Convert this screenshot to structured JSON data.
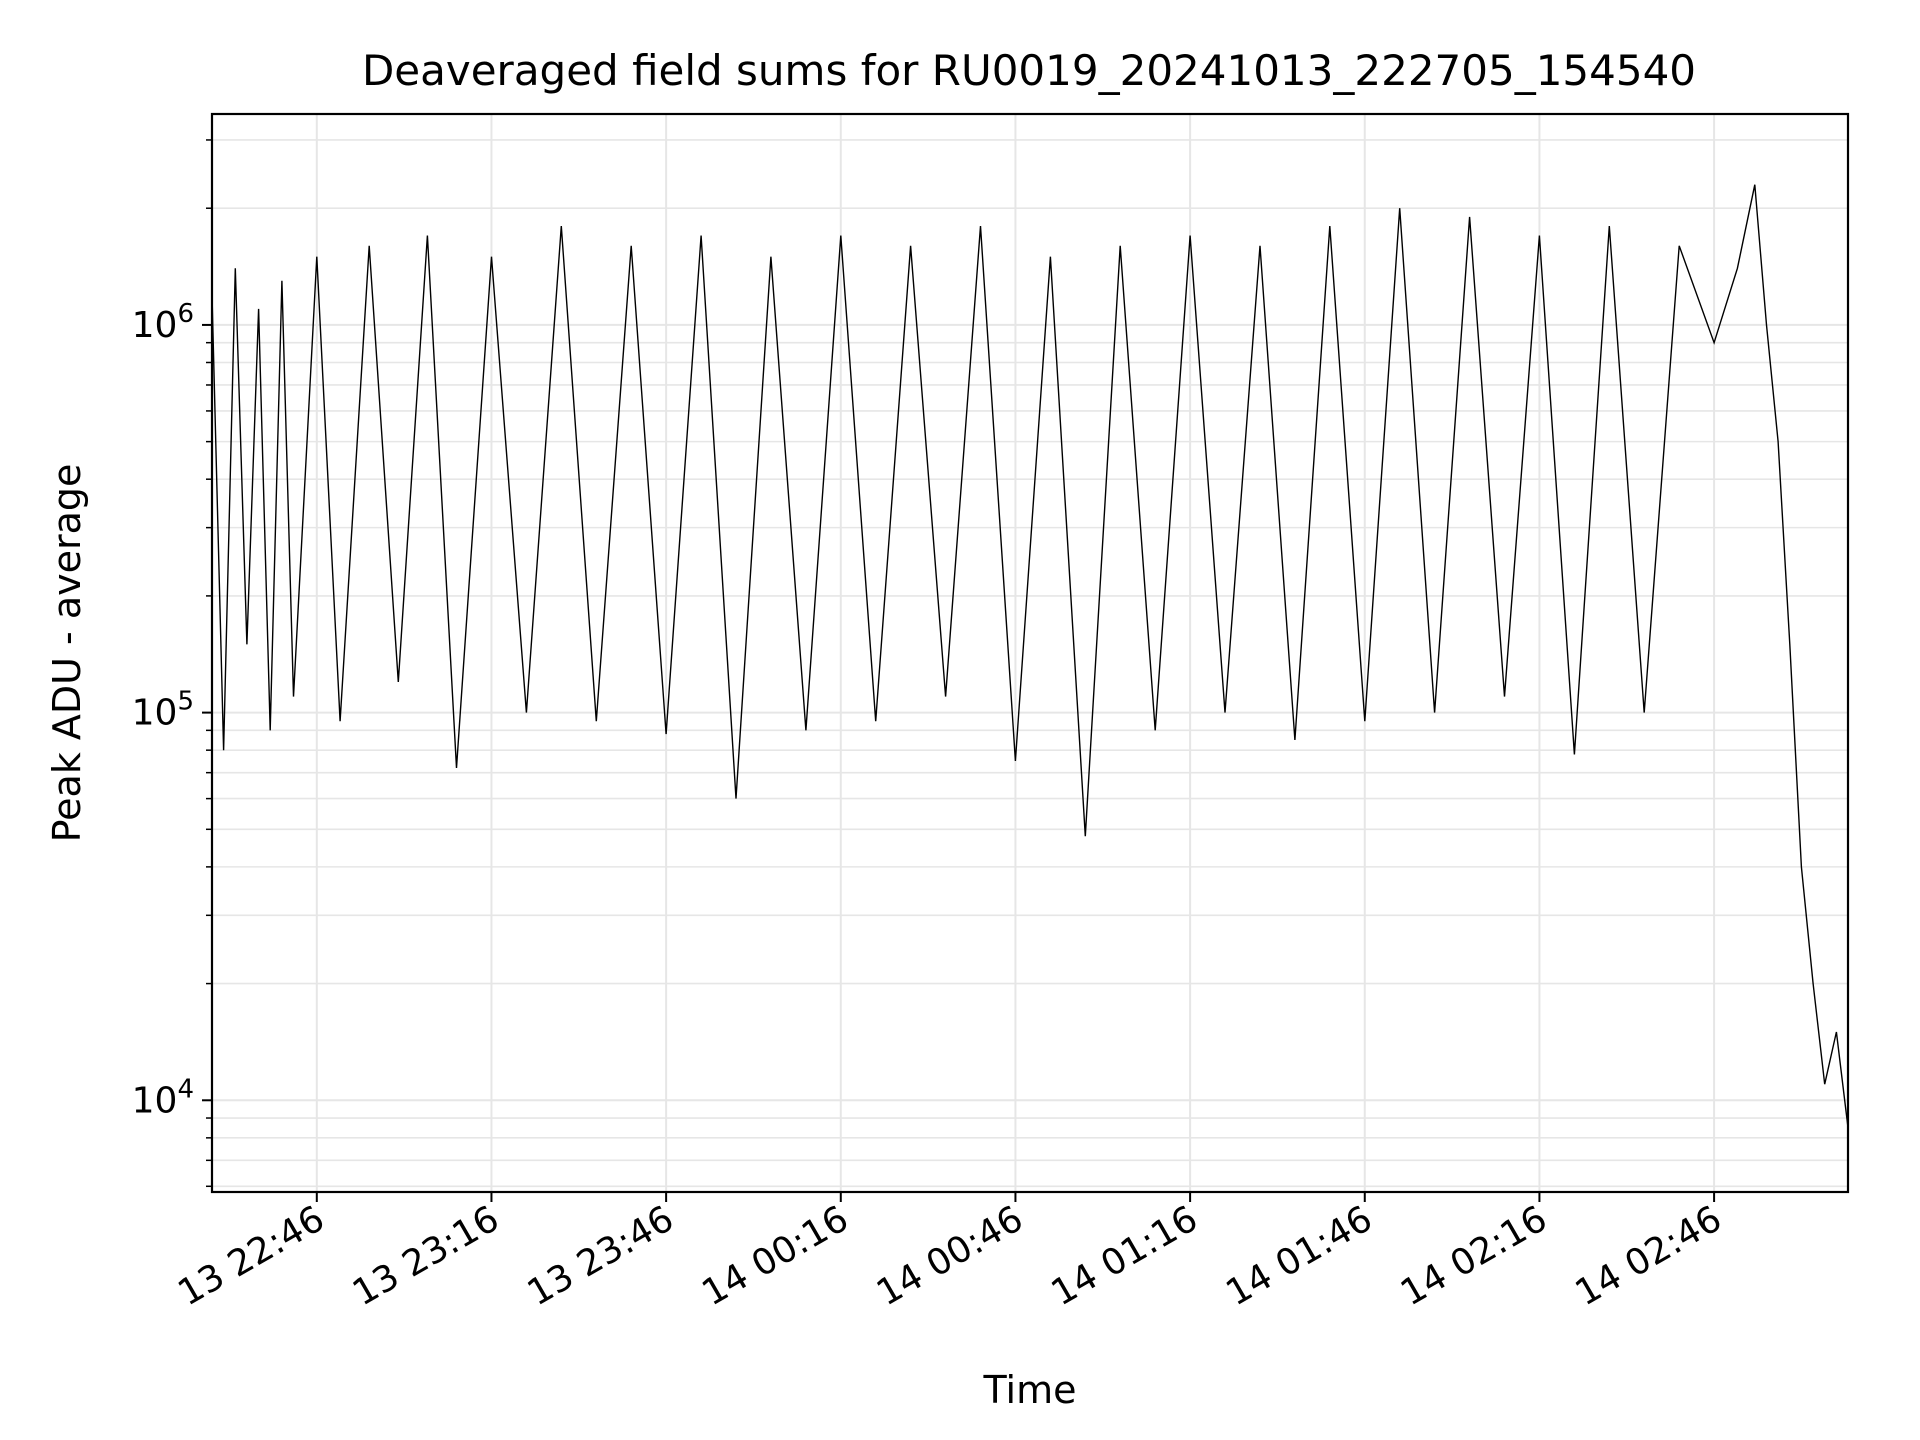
{
  "chart_data": {
    "type": "line",
    "title": "Deaveraged field sums for RU0019_20241013_222705_154540",
    "xlabel": "Time",
    "ylabel": "Peak ADU - average",
    "yscale": "log",
    "xlim": [
      "2024-10-13T22:28:00",
      "2024-10-14T03:09:00"
    ],
    "ylim": [
      5800,
      3500000
    ],
    "grid": true,
    "x_ticks": [
      {
        "t": "2024-10-13T22:46:00",
        "label": "13 22:46"
      },
      {
        "t": "2024-10-13T23:16:00",
        "label": "13 23:16"
      },
      {
        "t": "2024-10-13T23:46:00",
        "label": "13 23:46"
      },
      {
        "t": "2024-10-14T00:16:00",
        "label": "14 00:16"
      },
      {
        "t": "2024-10-14T00:46:00",
        "label": "14 00:46"
      },
      {
        "t": "2024-10-14T01:16:00",
        "label": "14 01:16"
      },
      {
        "t": "2024-10-14T01:46:00",
        "label": "14 01:46"
      },
      {
        "t": "2024-10-14T02:16:00",
        "label": "14 02:16"
      },
      {
        "t": "2024-10-14T02:46:00",
        "label": "14 02:46"
      }
    ],
    "y_ticks": [
      {
        "value": 10000,
        "base": "10",
        "exp": "4"
      },
      {
        "value": 100000,
        "base": "10",
        "exp": "5"
      },
      {
        "value": 1000000,
        "base": "10",
        "exp": "6"
      }
    ],
    "series": [
      {
        "color": "#000000",
        "x": [
          "2024-10-13T22:28:00",
          "2024-10-13T22:30:00",
          "2024-10-13T22:32:00",
          "2024-10-13T22:34:00",
          "2024-10-13T22:36:00",
          "2024-10-13T22:38:00",
          "2024-10-13T22:40:00",
          "2024-10-13T22:42:00",
          "2024-10-13T22:46:00",
          "2024-10-13T22:50:00",
          "2024-10-13T22:55:00",
          "2024-10-13T23:00:00",
          "2024-10-13T23:05:00",
          "2024-10-13T23:10:00",
          "2024-10-13T23:16:00",
          "2024-10-13T23:22:00",
          "2024-10-13T23:28:00",
          "2024-10-13T23:34:00",
          "2024-10-13T23:40:00",
          "2024-10-13T23:46:00",
          "2024-10-13T23:52:00",
          "2024-10-13T23:58:00",
          "2024-10-14T00:04:00",
          "2024-10-14T00:10:00",
          "2024-10-14T00:16:00",
          "2024-10-14T00:22:00",
          "2024-10-14T00:28:00",
          "2024-10-14T00:34:00",
          "2024-10-14T00:40:00",
          "2024-10-14T00:46:00",
          "2024-10-14T00:52:00",
          "2024-10-14T00:58:00",
          "2024-10-14T01:04:00",
          "2024-10-14T01:10:00",
          "2024-10-14T01:16:00",
          "2024-10-14T01:22:00",
          "2024-10-14T01:28:00",
          "2024-10-14T01:34:00",
          "2024-10-14T01:40:00",
          "2024-10-14T01:46:00",
          "2024-10-14T01:52:00",
          "2024-10-14T01:58:00",
          "2024-10-14T02:04:00",
          "2024-10-14T02:10:00",
          "2024-10-14T02:16:00",
          "2024-10-14T02:22:00",
          "2024-10-14T02:28:00",
          "2024-10-14T02:34:00",
          "2024-10-14T02:40:00",
          "2024-10-14T02:46:00",
          "2024-10-14T02:50:00",
          "2024-10-14T02:53:00",
          "2024-10-14T02:55:00",
          "2024-10-14T02:57:00",
          "2024-10-14T02:59:00",
          "2024-10-14T03:01:00",
          "2024-10-14T03:03:00",
          "2024-10-14T03:05:00",
          "2024-10-14T03:07:00",
          "2024-10-14T03:09:00"
        ],
        "y": [
          1200000,
          80000,
          1400000,
          150000,
          1100000,
          90000,
          1300000,
          110000,
          1500000,
          95000,
          1600000,
          120000,
          1700000,
          72000,
          1500000,
          100000,
          1800000,
          95000,
          1600000,
          88000,
          1700000,
          60000,
          1500000,
          90000,
          1700000,
          95000,
          1600000,
          110000,
          1800000,
          75000,
          1500000,
          48000,
          1600000,
          90000,
          1700000,
          100000,
          1600000,
          85000,
          1800000,
          95000,
          2000000,
          100000,
          1900000,
          110000,
          1700000,
          78000,
          1800000,
          100000,
          1600000,
          900000,
          1400000,
          2300000,
          1000000,
          500000,
          150000,
          40000,
          20000,
          11000,
          15000,
          8500
        ]
      }
    ]
  }
}
